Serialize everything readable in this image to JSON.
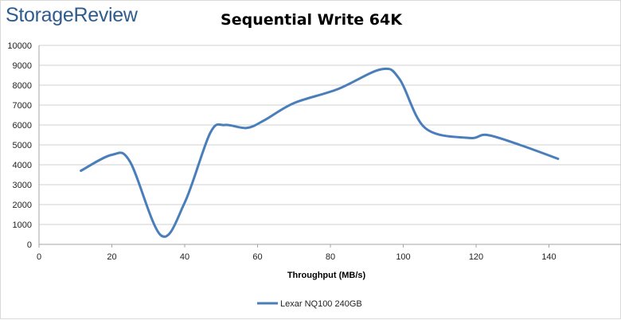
{
  "brand": {
    "name": "StorageReview"
  },
  "chart_data": {
    "type": "line",
    "title": "Sequential Write 64K",
    "xlabel": "Throughput (MB/s)",
    "ylabel": "",
    "xlim": [
      0,
      160
    ],
    "ylim": [
      0,
      10000
    ],
    "xticks": [
      0,
      20,
      40,
      60,
      80,
      100,
      120,
      140
    ],
    "yticks": [
      0,
      1000,
      2000,
      3000,
      4000,
      5000,
      6000,
      7000,
      8000,
      9000,
      10000
    ],
    "grid": true,
    "legend_position": "bottom",
    "series": [
      {
        "name": "Lexar NQ100 240GB",
        "color": "#4a7ebb",
        "x": [
          11.5,
          20,
          25,
          33.5,
          40,
          47,
          51,
          57,
          62,
          70,
          82,
          94,
          99,
          106,
          118,
          123,
          132,
          142.5
        ],
        "y": [
          3700,
          4500,
          4150,
          450,
          2100,
          5600,
          6000,
          5850,
          6250,
          7100,
          7800,
          8800,
          8300,
          5850,
          5350,
          5500,
          5000,
          4300
        ]
      }
    ]
  }
}
